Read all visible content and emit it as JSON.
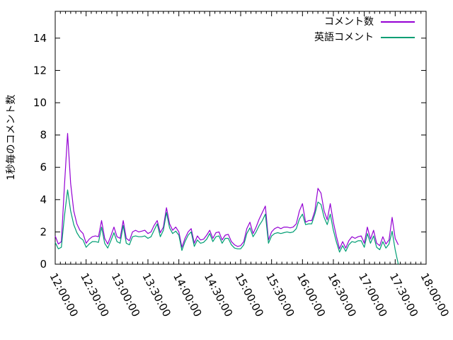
{
  "page": {
    "background": "#ffffff",
    "text_color": "#000000"
  },
  "chart_data": {
    "type": "line",
    "title": "",
    "xlabel": "",
    "ylabel": "1秒毎のコメント数",
    "grid": false,
    "legend_position": "top-right-inside",
    "x_tick_labels": [
      "12:00:00",
      "12:30:00",
      "13:00:00",
      "13:30:00",
      "14:00:00",
      "14:30:00",
      "15:00:00",
      "15:30:00",
      "16:00:00",
      "16:30:00",
      "17:00:00",
      "17:30:00",
      "18:00:00"
    ],
    "x_minor_tick_minutes": 5,
    "y_ticks": [
      0,
      2,
      4,
      6,
      8,
      10,
      12,
      14
    ],
    "xlim_minutes": [
      0,
      360
    ],
    "ylim": [
      0,
      15.66
    ],
    "x_start_time": "12:00:00",
    "x_step_minutes": 3,
    "series": [
      {
        "name": "コメント数",
        "color": "#9400d3",
        "values": [
          1.75,
          1.25,
          1.4,
          4.9,
          8.1,
          5.0,
          3.3,
          2.5,
          2.1,
          1.9,
          1.3,
          1.55,
          1.7,
          1.75,
          1.7,
          2.7,
          1.6,
          1.25,
          1.75,
          2.3,
          1.7,
          1.6,
          2.7,
          1.6,
          1.45,
          2.0,
          2.1,
          2.0,
          2.05,
          2.1,
          1.9,
          2.0,
          2.4,
          2.7,
          1.95,
          2.3,
          3.5,
          2.5,
          2.1,
          2.3,
          2.0,
          1.05,
          1.6,
          2.0,
          2.2,
          1.3,
          1.75,
          1.5,
          1.55,
          1.8,
          2.1,
          1.6,
          1.95,
          2.0,
          1.5,
          1.8,
          1.85,
          1.4,
          1.2,
          1.1,
          1.15,
          1.4,
          2.2,
          2.6,
          1.9,
          2.3,
          2.8,
          3.2,
          3.6,
          1.5,
          2.0,
          2.2,
          2.3,
          2.2,
          2.3,
          2.3,
          2.25,
          2.3,
          2.5,
          3.3,
          3.75,
          2.6,
          2.7,
          2.7,
          3.3,
          4.7,
          4.4,
          3.3,
          2.75,
          3.75,
          2.6,
          1.7,
          0.95,
          1.4,
          1.0,
          1.45,
          1.7,
          1.6,
          1.7,
          1.75,
          1.3,
          2.3,
          1.55,
          2.1,
          1.3,
          1.15,
          1.7,
          1.25,
          1.5,
          2.9,
          1.6,
          1.2
        ]
      },
      {
        "name": "英語コメント",
        "color": "#009e73",
        "values": [
          1.35,
          0.95,
          1.05,
          3.0,
          4.6,
          3.3,
          2.45,
          1.95,
          1.65,
          1.5,
          1.05,
          1.25,
          1.4,
          1.4,
          1.35,
          2.3,
          1.3,
          1.0,
          1.45,
          1.95,
          1.4,
          1.3,
          2.4,
          1.3,
          1.2,
          1.7,
          1.75,
          1.7,
          1.7,
          1.75,
          1.6,
          1.7,
          2.1,
          2.5,
          1.7,
          2.1,
          3.2,
          2.25,
          1.9,
          2.05,
          1.8,
          0.85,
          1.4,
          1.8,
          2.0,
          1.1,
          1.5,
          1.3,
          1.35,
          1.55,
          1.9,
          1.4,
          1.7,
          1.75,
          1.3,
          1.6,
          1.6,
          1.2,
          1.0,
          0.95,
          0.95,
          1.2,
          1.9,
          2.25,
          1.7,
          2.0,
          2.4,
          2.7,
          3.1,
          1.3,
          1.75,
          1.9,
          1.95,
          1.9,
          1.95,
          2.0,
          1.95,
          2.0,
          2.2,
          2.8,
          3.1,
          2.45,
          2.5,
          2.5,
          3.1,
          3.85,
          3.7,
          2.9,
          2.45,
          3.1,
          2.1,
          1.35,
          0.75,
          1.15,
          0.8,
          1.2,
          1.4,
          1.35,
          1.45,
          1.45,
          1.05,
          1.9,
          1.3,
          1.75,
          1.05,
          0.9,
          1.4,
          1.0,
          1.25,
          2.05,
          0.9,
          0.0
        ]
      }
    ]
  }
}
